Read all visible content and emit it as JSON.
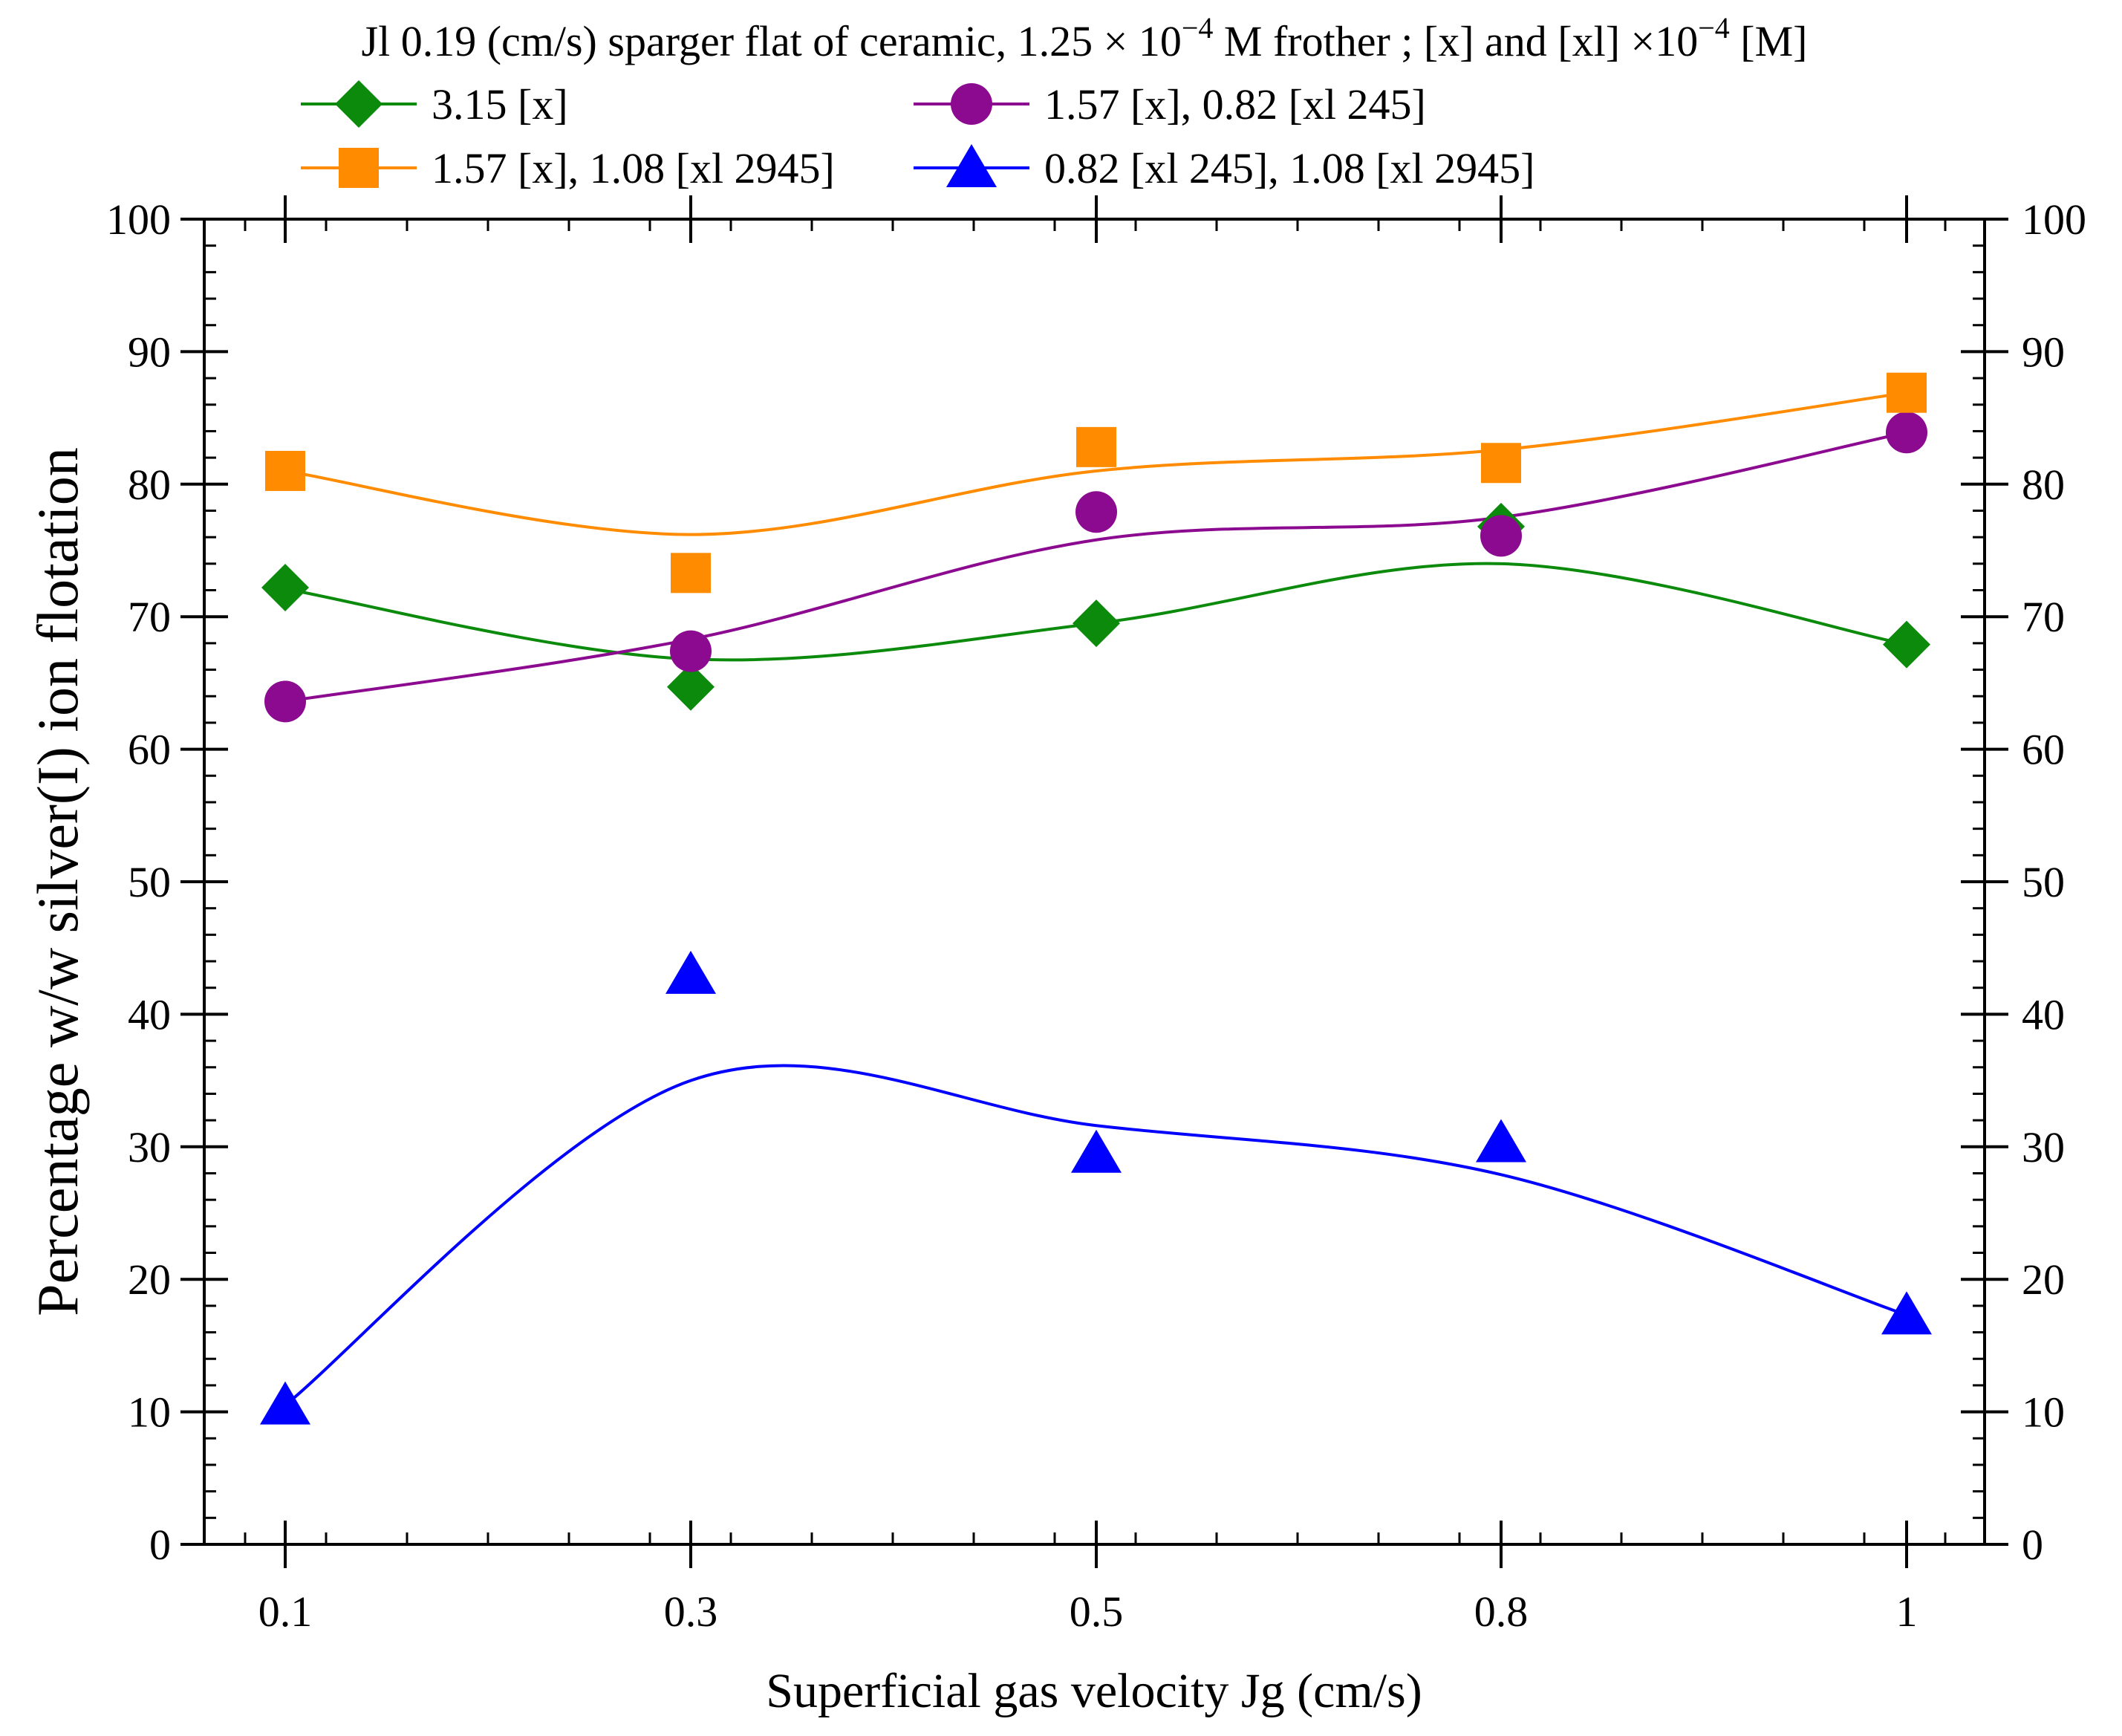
{
  "chart_data": {
    "type": "scatter",
    "title": {
      "prefix": "Jl 0.19 (cm/s) sparger flat of ceramic, 1.25 × 10",
      "exp1": "−4",
      "middle": " M frother ;  [x] and [xl] ×10",
      "exp2": "−4",
      "suffix": " [M]"
    },
    "xlabel": "Superficial gas velocity Jg (cm/s)",
    "ylabel": "Percentage w/w silver(I) ion flotation",
    "categories": [
      "0.1",
      "0.3",
      "0.5",
      "0.8",
      "1"
    ],
    "ylim": [
      0,
      100
    ],
    "yticks": [
      "0",
      "10",
      "20",
      "30",
      "40",
      "50",
      "60",
      "70",
      "80",
      "90",
      "100"
    ],
    "series": [
      {
        "name": "3.15 [x]",
        "marker": "diamond",
        "color": "#0b8a0b",
        "values": [
          72.2,
          64.7,
          69.5,
          76.8,
          67.9
        ],
        "fit": [
          72.1,
          66.8,
          69.5,
          74.0,
          67.9
        ]
      },
      {
        "name": "1.57 [x], 0.82 [xl 245]",
        "marker": "circle",
        "color": "#8b0a8f",
        "values": [
          63.6,
          67.4,
          77.9,
          76.1,
          83.9
        ],
        "fit": [
          63.6,
          68.3,
          75.8,
          77.5,
          83.9
        ]
      },
      {
        "name": "1.57 [x], 1.08 [xl 2945]",
        "marker": "square",
        "color": "#ff8c00",
        "values": [
          81.0,
          73.3,
          82.8,
          81.6,
          86.9
        ],
        "fit": [
          81.0,
          76.2,
          81.0,
          82.6,
          86.9
        ]
      },
      {
        "name": "0.82 [xl 245],  1.08 [xl 2945]",
        "marker": "triangle",
        "color": "#0000ff",
        "values": [
          10.5,
          43.0,
          29.5,
          30.3,
          17.3
        ],
        "fit": [
          10.5,
          35.0,
          31.6,
          27.9,
          17.3
        ]
      }
    ],
    "legend_position": "top"
  }
}
